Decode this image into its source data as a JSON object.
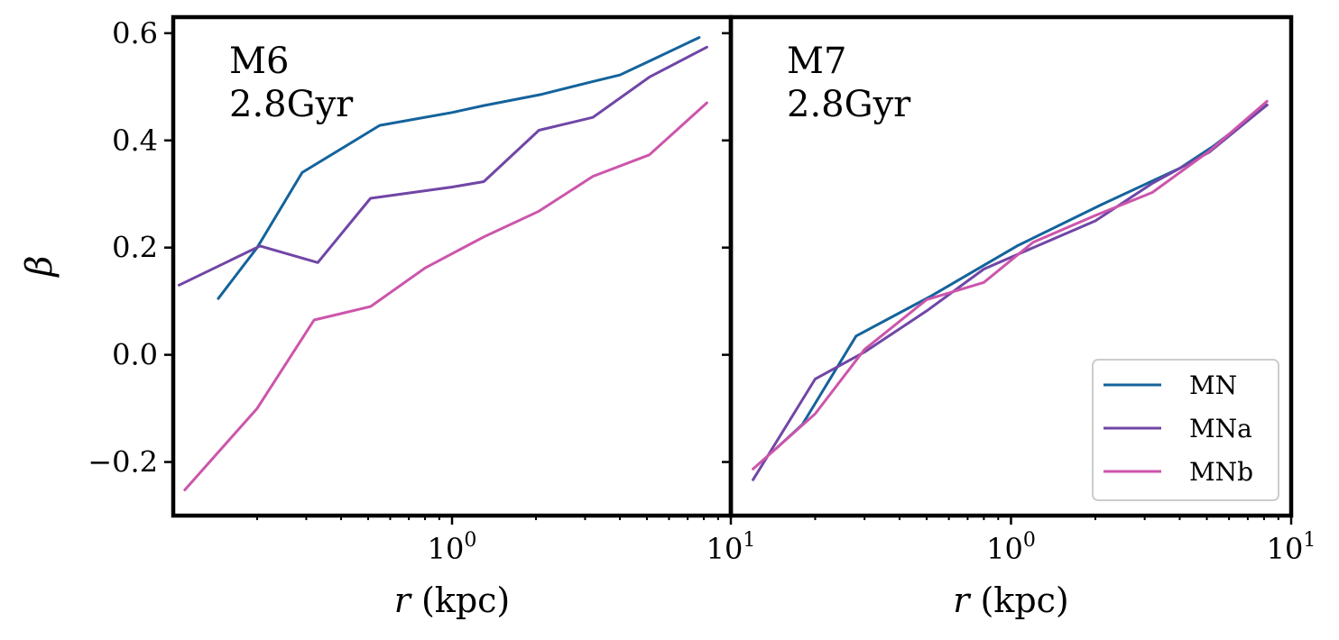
{
  "figure": {
    "ylabel": "β",
    "colors": {
      "MN": "#14639b",
      "MNa": "#7046a6",
      "MNb": "#cc55ab",
      "axes": "#000000"
    }
  },
  "chart_data": [
    {
      "type": "line",
      "panel_text": [
        "M6",
        "2.8Gyr"
      ],
      "xlabel": "r (kpc)",
      "ylabel": "β",
      "xscale": "log",
      "xlim": [
        0.1,
        10
      ],
      "ylim": [
        -0.3,
        0.63
      ],
      "xticks": [
        {
          "value": 1,
          "base": "10",
          "exp": "0"
        },
        {
          "value": 10,
          "base": "10",
          "exp": "1"
        }
      ],
      "yticks": [
        {
          "value": -0.2,
          "label": "−0.2"
        },
        {
          "value": 0.0,
          "label": "0.0"
        },
        {
          "value": 0.2,
          "label": "0.2"
        },
        {
          "value": 0.4,
          "label": "0.4"
        },
        {
          "value": 0.6,
          "label": "0.6"
        }
      ],
      "series": [
        {
          "name": "MN",
          "color": "#14639b",
          "x": [
            0.145,
            0.2,
            0.29,
            0.55,
            1.0,
            1.3,
            2.1,
            3.2,
            4.0,
            5.2,
            7.7
          ],
          "y": [
            0.105,
            0.2,
            0.34,
            0.428,
            0.452,
            0.465,
            0.486,
            0.51,
            0.522,
            0.55,
            0.592
          ]
        },
        {
          "name": "MNa",
          "color": "#7046a6",
          "x": [
            0.105,
            0.205,
            0.33,
            0.51,
            1.0,
            1.3,
            2.05,
            3.2,
            5.1,
            8.2
          ],
          "y": [
            0.13,
            0.203,
            0.172,
            0.292,
            0.313,
            0.323,
            0.419,
            0.443,
            0.518,
            0.574
          ]
        },
        {
          "name": "MNb",
          "color": "#cc55ab",
          "x": [
            0.11,
            0.2,
            0.32,
            0.51,
            0.8,
            1.3,
            2.05,
            3.2,
            5.1,
            8.2
          ],
          "y": [
            -0.252,
            -0.1,
            0.065,
            0.09,
            0.162,
            0.22,
            0.268,
            0.333,
            0.373,
            0.47
          ]
        }
      ]
    },
    {
      "type": "line",
      "panel_text": [
        "M7",
        "2.8Gyr"
      ],
      "xlabel": "r (kpc)",
      "xscale": "log",
      "xlim": [
        0.1,
        10
      ],
      "ylim": [
        -0.3,
        0.63
      ],
      "xticks": [
        {
          "value": 1,
          "base": "10",
          "exp": "0"
        },
        {
          "value": 10,
          "base": "10",
          "exp": "1"
        }
      ],
      "legend": {
        "placement": "lower right",
        "entries": [
          "MN",
          "MNa",
          "MNb"
        ]
      },
      "series": [
        {
          "name": "MN",
          "color": "#14639b",
          "x": [
            0.145,
            0.18,
            0.28,
            0.52,
            1.05,
            2.1,
            4.0,
            5.3,
            8.2
          ],
          "y": [
            -0.175,
            -0.13,
            0.035,
            0.11,
            0.203,
            0.28,
            0.348,
            0.39,
            0.466
          ]
        },
        {
          "name": "MNa",
          "color": "#7046a6",
          "x": [
            0.12,
            0.2,
            0.3,
            0.5,
            0.8,
            1.2,
            2.0,
            3.2,
            5.1,
            8.2
          ],
          "y": [
            -0.233,
            -0.045,
            0.005,
            0.082,
            0.16,
            0.2,
            0.25,
            0.32,
            0.378,
            0.466
          ]
        },
        {
          "name": "MNb",
          "color": "#cc55ab",
          "x": [
            0.12,
            0.2,
            0.3,
            0.5,
            0.8,
            1.2,
            2.0,
            3.2,
            5.1,
            8.2
          ],
          "y": [
            -0.213,
            -0.11,
            0.01,
            0.103,
            0.135,
            0.21,
            0.26,
            0.303,
            0.38,
            0.473
          ]
        }
      ]
    }
  ]
}
